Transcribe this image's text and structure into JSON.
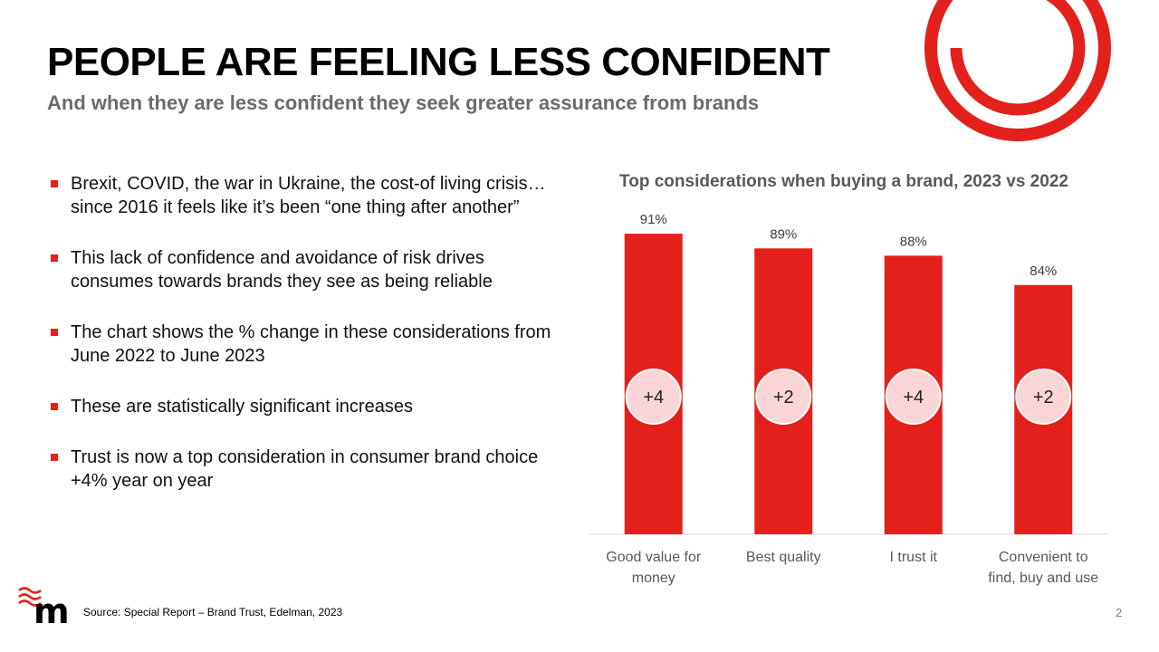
{
  "slide": {
    "title": "PEOPLE ARE FEELING LESS CONFIDENT",
    "subtitle": "And when they are less confident they seek greater assurance from brands",
    "bullets": [
      "Brexit, COVID, the war in Ukraine, the cost-of living crisis… since 2016 it feels like it’s been “one thing after another”",
      "This lack of confidence and avoidance of risk drives consumes towards brands they see as being reliable",
      "The chart shows the % change in these considerations from June 2022 to June 2023",
      "These are statistically significant increases",
      "Trust is now a top consideration in consumer brand choice +4% year on year"
    ],
    "source": "Source:  Special Report – Brand Trust, Edelman, 2023",
    "page_number": "2"
  },
  "colors": {
    "accent": "#e3201b",
    "badge_fill": "#f9d6d5",
    "subtitle_gray": "#6b6b6b"
  },
  "chart_data": {
    "type": "bar",
    "title": "Top considerations when buying a brand, 2023 vs 2022",
    "categories": [
      [
        "Good value for",
        "money"
      ],
      [
        "Best quality"
      ],
      [
        "I trust it"
      ],
      [
        "Convenient to",
        "find, buy and use"
      ]
    ],
    "values": [
      91,
      89,
      88,
      84
    ],
    "value_labels": [
      "91%",
      "89%",
      "88%",
      "84%"
    ],
    "change_labels": [
      "+4",
      "+2",
      "+4",
      "+2"
    ],
    "unit": "%",
    "xlabel": "",
    "ylabel": "",
    "ylim": [
      50,
      92
    ],
    "grid": false,
    "legend": "none"
  }
}
